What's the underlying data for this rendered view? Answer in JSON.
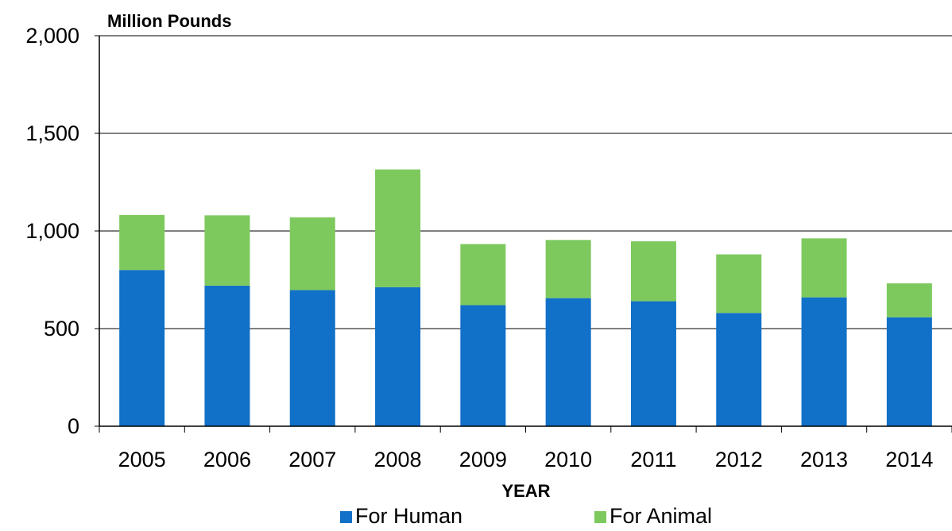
{
  "chart_data": {
    "type": "bar",
    "stacked": true,
    "ylabel": "Million Pounds",
    "xlabel": "YEAR",
    "categories": [
      "2005",
      "2006",
      "2007",
      "2008",
      "2009",
      "2010",
      "2011",
      "2012",
      "2013",
      "2014"
    ],
    "series": [
      {
        "name": "For Human",
        "color": "#1170c8",
        "values": [
          800,
          720,
          697,
          712,
          620,
          656,
          640,
          580,
          660,
          558
        ]
      },
      {
        "name": "For Animal",
        "color": "#7dc95e",
        "values": [
          282,
          360,
          373,
          603,
          313,
          298,
          307,
          300,
          302,
          174
        ]
      }
    ],
    "ylim": [
      0,
      2000
    ],
    "yticks": [
      0,
      500,
      1000,
      1500,
      2000
    ],
    "ytick_labels": [
      "0",
      "500",
      "1,000",
      "1,500",
      "2,000"
    ],
    "grid": true,
    "legend_position": "bottom"
  }
}
